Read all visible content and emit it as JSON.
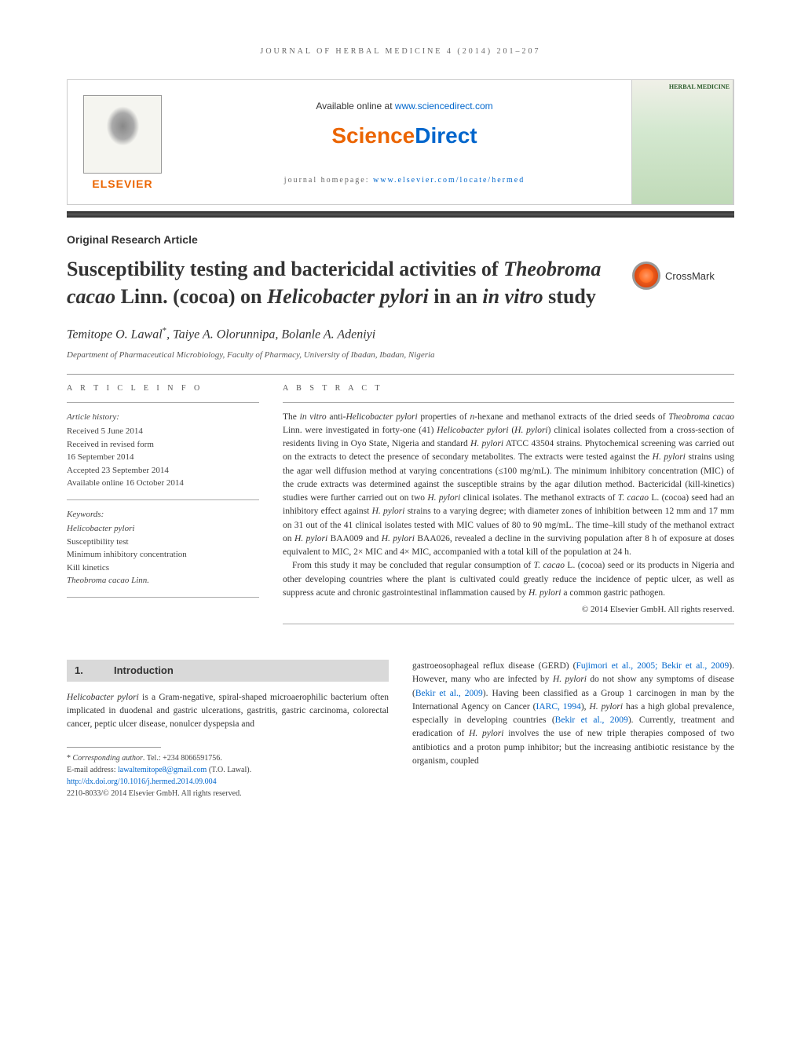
{
  "running_header": "JOURNAL OF HERBAL MEDICINE 4 (2014) 201–207",
  "banner": {
    "elsevier_label": "ELSEVIER",
    "available_online_prefix": "Available online at ",
    "available_online_url": "www.sciencedirect.com",
    "sciencedirect": "ScienceDirect",
    "journal_homepage_prefix": "journal homepage: ",
    "journal_homepage_url": "www.elsevier.com/locate/hermed",
    "cover_title": "HERBAL MEDICINE"
  },
  "article": {
    "type": "Original Research Article",
    "title_html": "Susceptibility testing and bactericidal activities of <span class=\"italic\">Theobroma cacao</span> Linn. (cocoa) on <span class=\"italic\">Helicobacter pylori</span> in an <span class=\"italic\">in vitro</span> study",
    "crossmark_label": "CrossMark",
    "authors_html": "Temitope O. Lawal<span class=\"asterisk\">*</span>, Taiye A. Olorunnipa, Bolanle A. Adeniyi",
    "affiliation": "Department of Pharmaceutical Microbiology, Faculty of Pharmacy, University of Ibadan, Ibadan, Nigeria"
  },
  "article_info": {
    "section_label": "A R T I C L E   I N F O",
    "history_heading": "Article history:",
    "history_lines": [
      "Received 5 June 2014",
      "Received in revised form",
      "16 September 2014",
      "Accepted 23 September 2014",
      "Available online 16 October 2014"
    ],
    "keywords_heading": "Keywords:",
    "keywords": [
      "Helicobacter pylori",
      "Susceptibility test",
      "Minimum inhibitory concentration",
      "Kill kinetics",
      "Theobroma cacao Linn."
    ]
  },
  "abstract": {
    "section_label": "A B S T R A C T",
    "p1_html": "The <span class=\"italic\">in vitro</span> anti-<span class=\"italic\">Helicobacter pylori</span> properties of <span class=\"italic\">n</span>-hexane and methanol extracts of the dried seeds of <span class=\"italic\">Theobroma cacao</span> Linn. were investigated in forty-one (41) <span class=\"italic\">Helicobacter pylori</span> (<span class=\"italic\">H. pylori</span>) clinical isolates collected from a cross-section of residents living in Oyo State, Nigeria and standard <span class=\"italic\">H. pylori</span> ATCC 43504 strains. Phytochemical screening was carried out on the extracts to detect the presence of secondary metabolites. The extracts were tested against the <span class=\"italic\">H. pylori</span> strains using the agar well diffusion method at varying concentrations (≤100 mg/mL). The minimum inhibitory concentration (MIC) of the crude extracts was determined against the susceptible strains by the agar dilution method. Bactericidal (kill-kinetics) studies were further carried out on two <span class=\"italic\">H. pylori</span> clinical isolates. The methanol extracts of <span class=\"italic\">T. cacao</span> L. (cocoa) seed had an inhibitory effect against <span class=\"italic\">H. pylori</span> strains to a varying degree; with diameter zones of inhibition between 12 mm and 17 mm on 31 out of the 41 clinical isolates tested with MIC values of 80 to 90 mg/mL. The time–kill study of the methanol extract on <span class=\"italic\">H. pylori</span> BAA009 and <span class=\"italic\">H. pylori</span> BAA026, revealed a decline in the surviving population after 8 h of exposure at doses equivalent to MIC, 2× MIC and 4× MIC, accompanied with a total kill of the population at 24 h.",
    "p2_html": "From this study it may be concluded that regular consumption of <span class=\"italic\">T. cacao</span> L. (cocoa) seed or its products in Nigeria and other developing countries where the plant is cultivated could greatly reduce the incidence of peptic ulcer, as well as suppress acute and chronic gastrointestinal inflammation caused by <span class=\"italic\">H. pylori</span> a common gastric pathogen.",
    "copyright": "© 2014 Elsevier GmbH. All rights reserved."
  },
  "intro": {
    "heading_num": "1.",
    "heading_text": "Introduction",
    "col1_html": "<span class=\"italic\">Helicobacter pylori</span> is a Gram-negative, spiral-shaped microaerophilic bacterium often implicated in duodenal and gastric ulcerations, gastritis, gastric carcinoma, colorectal cancer, peptic ulcer disease, nonulcer dyspepsia and",
    "col2_html": "gastroeosophageal reflux disease (GERD) (<span class=\"ref-link\">Fujimori et al., 2005; Bekir et al., 2009</span>). However, many who are infected by <span class=\"italic\">H. pylori</span> do not show any symptoms of disease (<span class=\"ref-link\">Bekir et al., 2009</span>). Having been classified as a Group 1 carcinogen in man by the International Agency on Cancer (<span class=\"ref-link\">IARC, 1994</span>), <span class=\"italic\">H. pylori</span> has a high global prevalence, especially in developing countries (<span class=\"ref-link\">Bekir et al., 2009</span>). Currently, treatment and eradication of <span class=\"italic\">H. pylori</span> involves the use of new triple therapies composed of two antibiotics and a proton pump inhibitor; but the increasing antibiotic resistance by the organism, coupled"
  },
  "footer": {
    "corresponding_html": "* <span class=\"italic\">Corresponding author</span>. Tel.: +234 8066591756.",
    "email_prefix": "E-mail address: ",
    "email": "lawaltemitope8@gmail.com",
    "email_suffix": " (T.O. Lawal).",
    "doi": "http://dx.doi.org/10.1016/j.hermed.2014.09.004",
    "issn_line": "2210-8033/© 2014 Elsevier GmbH. All rights reserved."
  },
  "colors": {
    "elsevier_orange": "#EB6500",
    "link_blue": "#0066cc",
    "heading_bg": "#d9d9d9",
    "divider": "#999999",
    "text": "#333333"
  }
}
